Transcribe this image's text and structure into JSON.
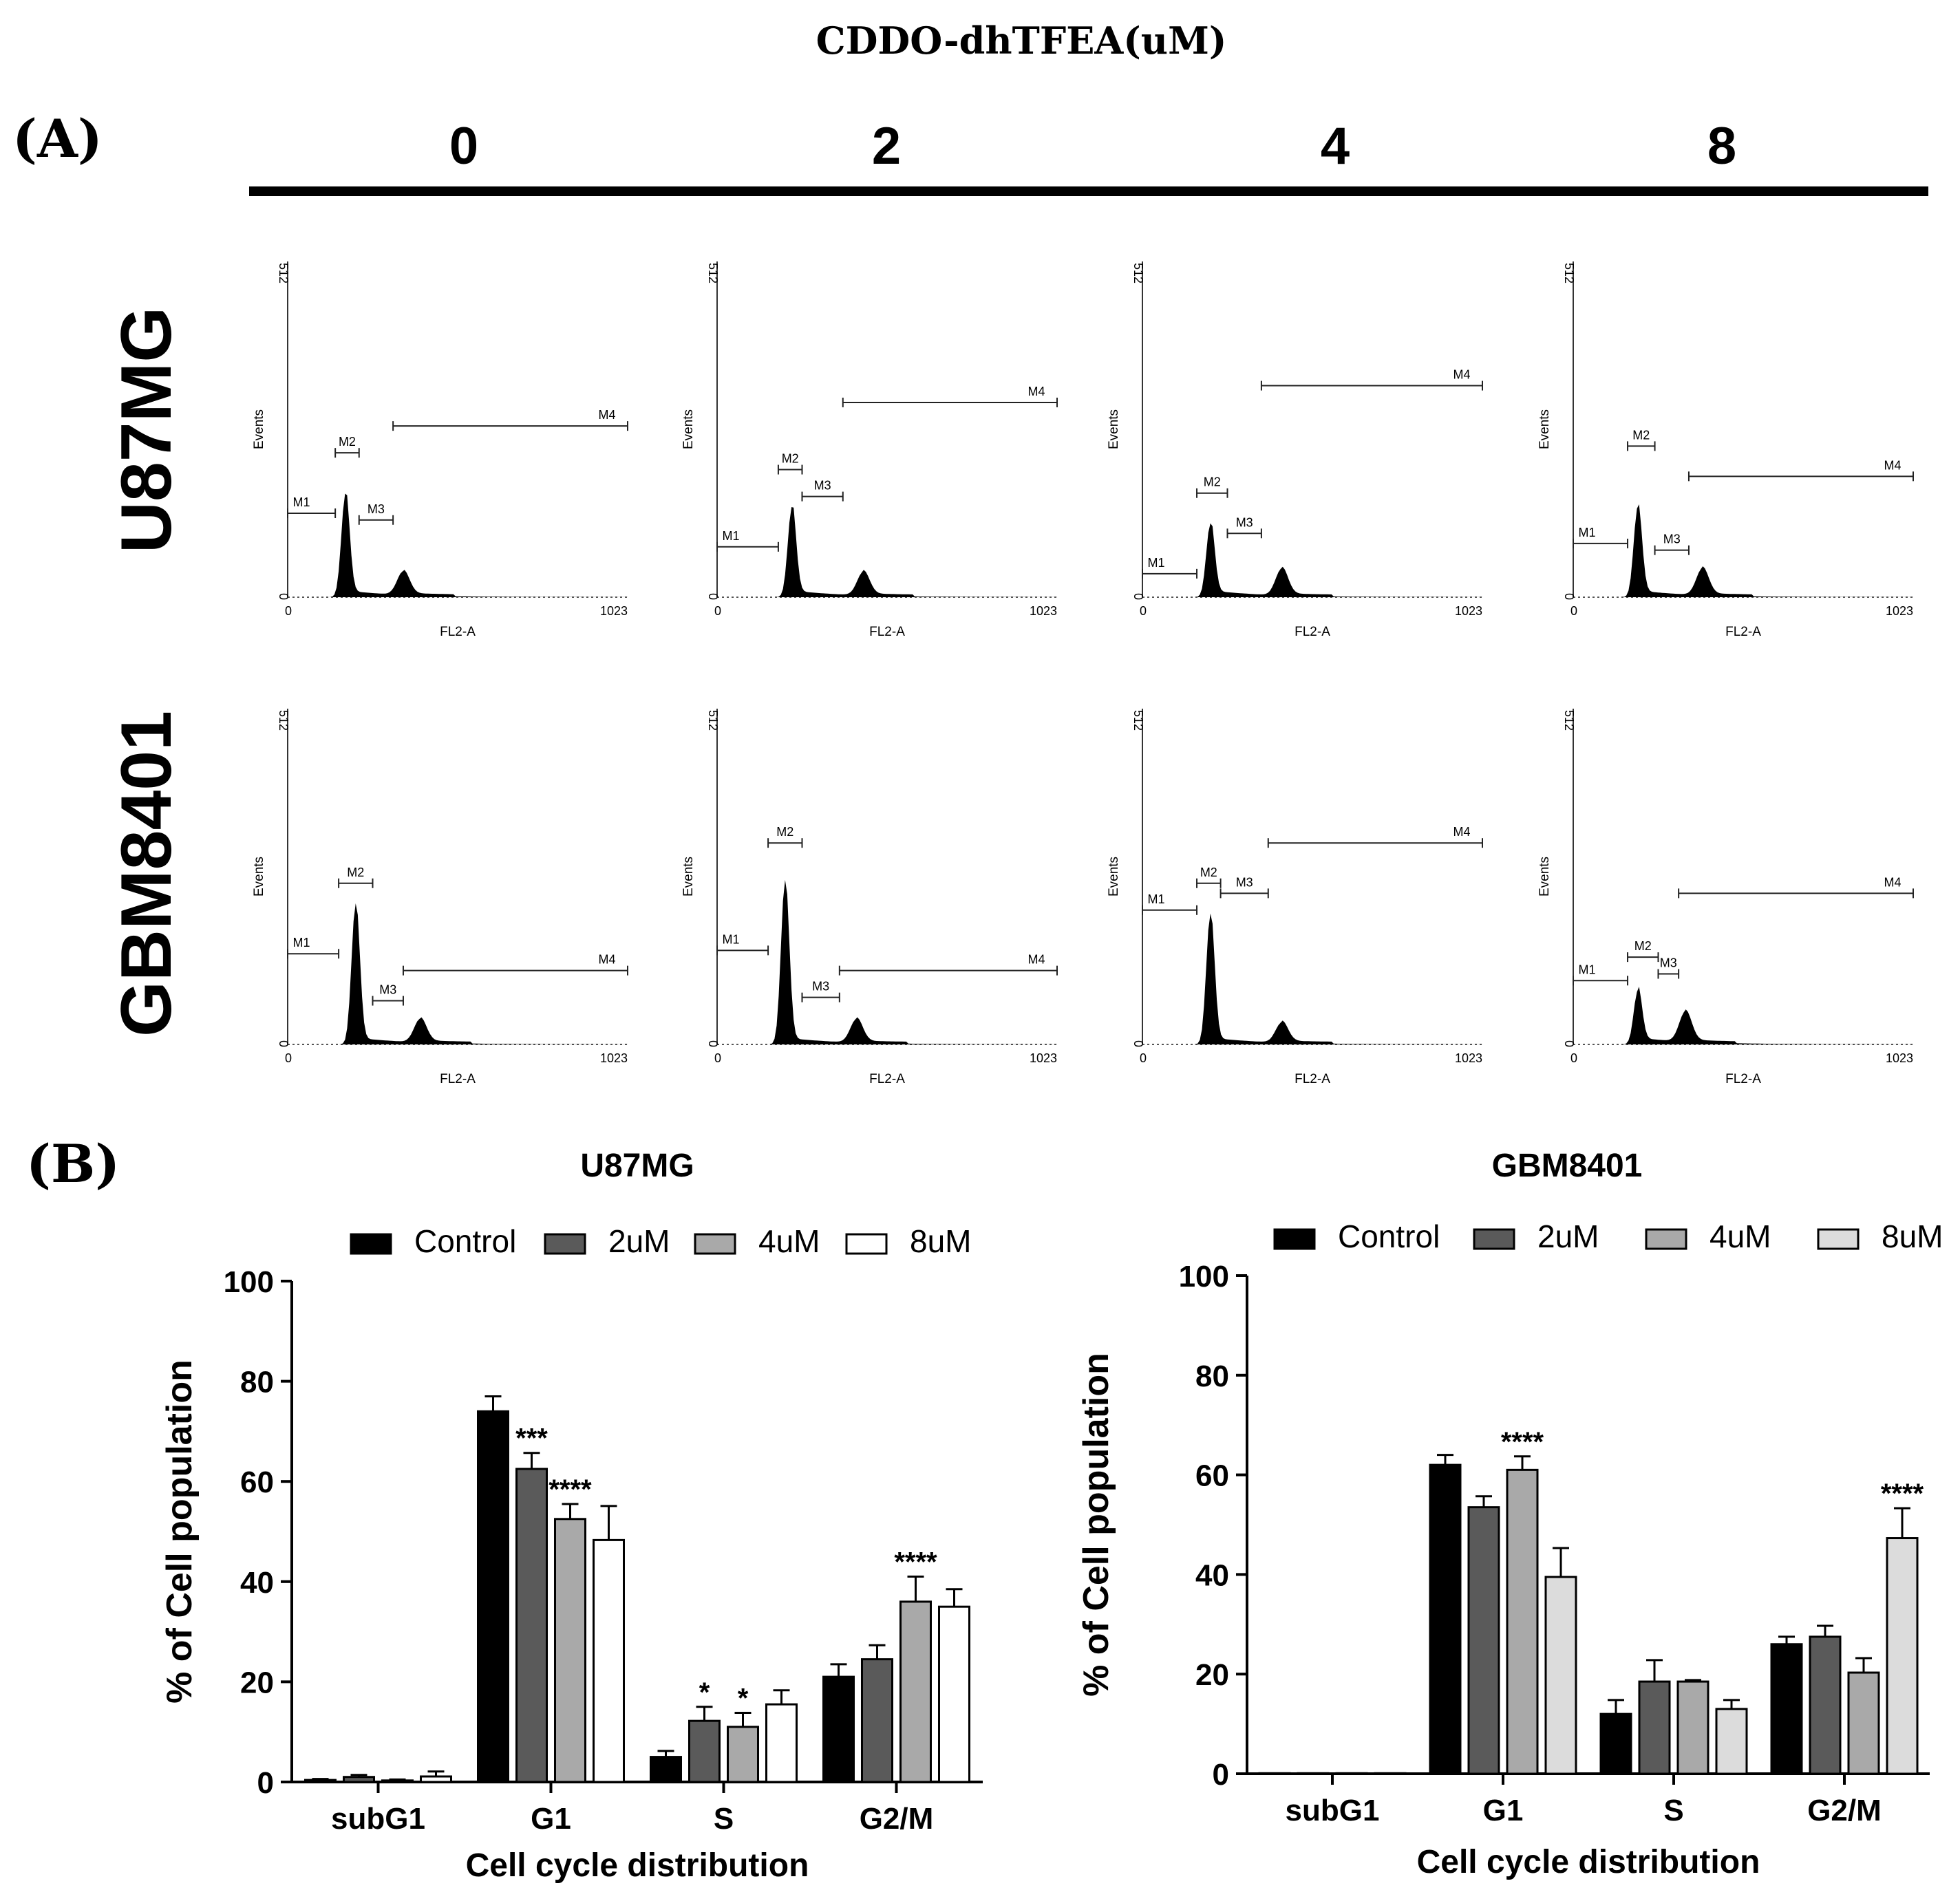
{
  "figure": {
    "header_title": "CDDO-dhTFEA(uM)",
    "panel_a_label": "(A)",
    "panel_b_label": "(B)",
    "doses": [
      "0",
      "2",
      "4",
      "8"
    ],
    "rows": [
      "U87MG",
      "GBM8401"
    ]
  },
  "flow_common": {
    "y_top_label": "512",
    "y_zero_label": "0",
    "x_zero_label": "0",
    "x_max_label": "1023",
    "xlabel": "FL2-A",
    "ylabel": "Events",
    "gate_labels": [
      "M1",
      "M2",
      "M3",
      "M4"
    ]
  },
  "chart_data": [
    {
      "type": "bar",
      "title": "U87MG",
      "xlabel": "Cell cycle distribution",
      "ylabel": "% of Cell population",
      "ylim": [
        0,
        100
      ],
      "yticks": [
        "0",
        "20",
        "40",
        "60",
        "80",
        "100"
      ],
      "categories": [
        "subG1",
        "G1",
        "S",
        "G2/M"
      ],
      "legend_position": "top",
      "series": [
        {
          "name": "Control",
          "color": "#000000",
          "values": [
            0.4,
            74,
            5,
            21
          ],
          "errors": [
            0.2,
            3,
            1.2,
            2.5
          ]
        },
        {
          "name": "2uM",
          "color": "#5a5a5a",
          "values": [
            1,
            62.5,
            12.2,
            24.5
          ],
          "errors": [
            0.4,
            3.2,
            2.8,
            2.8
          ]
        },
        {
          "name": "4uM",
          "color": "#a9a9a9",
          "values": [
            0.3,
            52.5,
            11,
            36
          ],
          "errors": [
            0.2,
            3,
            2.8,
            5
          ]
        },
        {
          "name": "8uM",
          "color": "#ffffff",
          "values": [
            1.1,
            48.3,
            15.5,
            35
          ],
          "errors": [
            1.0,
            6.8,
            2.8,
            3.5
          ]
        }
      ],
      "significance": [
        {
          "category": "G1",
          "series": "2uM",
          "label": "***"
        },
        {
          "category": "G1",
          "series": "4uM",
          "label": "****"
        },
        {
          "category": "S",
          "series": "2uM",
          "label": "*"
        },
        {
          "category": "S",
          "series": "4uM",
          "label": "*"
        },
        {
          "category": "G2/M",
          "series": "4uM",
          "label": "****"
        }
      ]
    },
    {
      "type": "bar",
      "title": "GBM8401",
      "xlabel": "Cell cycle distribution",
      "ylabel": "% of Cell population",
      "ylim": [
        0,
        100
      ],
      "yticks": [
        "0",
        "20",
        "40",
        "60",
        "80",
        "100"
      ],
      "categories": [
        "subG1",
        "G1",
        "S",
        "G2/M"
      ],
      "legend_position": "top",
      "series": [
        {
          "name": "Control",
          "color": "#000000",
          "values": [
            0.1,
            62,
            12,
            26
          ],
          "errors": [
            0,
            2,
            2.8,
            1.5
          ]
        },
        {
          "name": "2uM",
          "color": "#5a5a5a",
          "values": [
            0.1,
            53.5,
            18.5,
            27.5
          ],
          "errors": [
            0,
            2.2,
            4.3,
            2.2
          ]
        },
        {
          "name": "4uM",
          "color": "#a9a9a9",
          "values": [
            0.1,
            61,
            18.5,
            20.3
          ],
          "errors": [
            0,
            2.7,
            0.3,
            2.9
          ]
        },
        {
          "name": "8uM",
          "color": "#dcdcdc",
          "values": [
            0.1,
            39.5,
            13,
            47.3
          ],
          "errors": [
            0,
            5.8,
            1.8,
            6
          ]
        }
      ],
      "significance": [
        {
          "category": "G1",
          "series": "4uM",
          "label": "****"
        },
        {
          "category": "G2/M",
          "series": "8uM",
          "label": "****"
        }
      ]
    }
  ]
}
